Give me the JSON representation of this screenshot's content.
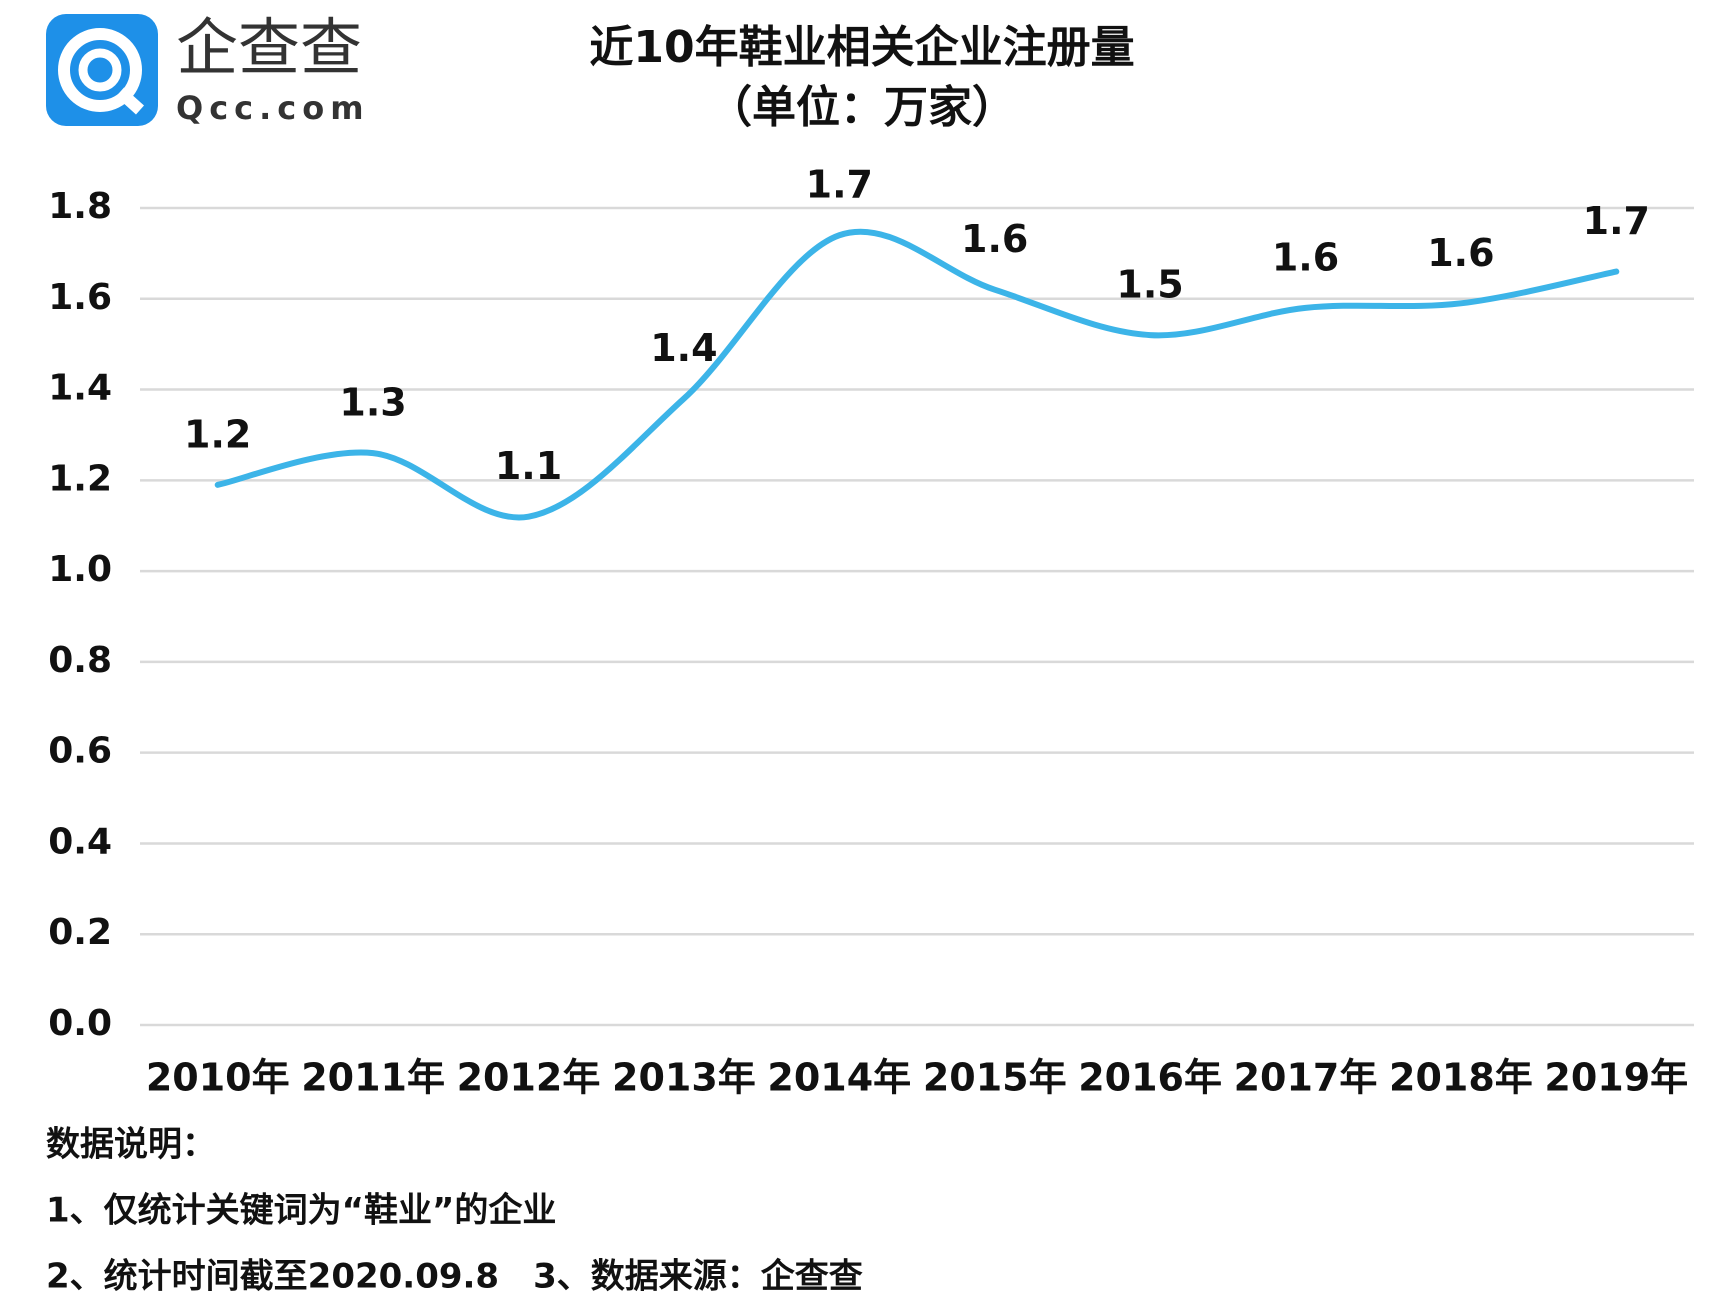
{
  "logo": {
    "name": "企查查",
    "site": "Qcc.com"
  },
  "chart_data": {
    "type": "line",
    "title": "近10年鞋业相关企业注册量",
    "subtitle": "（单位：万家）",
    "categories": [
      "2010年",
      "2011年",
      "2012年",
      "2013年",
      "2014年",
      "2015年",
      "2016年",
      "2017年",
      "2018年",
      "2019年"
    ],
    "series": [
      {
        "name": "注册量",
        "color": "#3cb4e8",
        "values": [
          1.19,
          1.26,
          1.12,
          1.38,
          1.74,
          1.62,
          1.52,
          1.58,
          1.59,
          1.66
        ],
        "value_labels": [
          "1.2",
          "1.3",
          "1.1",
          "1.4",
          "1.7",
          "1.6",
          "1.5",
          "1.6",
          "1.6",
          "1.7"
        ]
      }
    ],
    "ylim": [
      0,
      1.8
    ],
    "yticks": [
      {
        "value": 0,
        "label": "0.0"
      },
      0.2,
      0.4,
      0.6,
      0.8,
      {
        "value": 1,
        "label": "1.0"
      },
      1.2,
      1.4,
      1.6,
      1.8
    ],
    "grid": true
  },
  "notes": {
    "heading": "数据说明：",
    "lines": [
      "1、仅统计关键词为“鞋业”的企业",
      "2、统计时间截至2020.09.8　3、数据来源：企查查"
    ]
  }
}
